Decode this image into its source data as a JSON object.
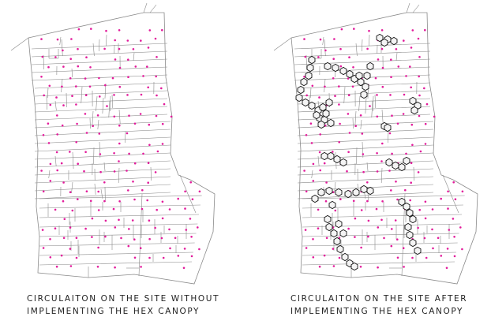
{
  "colors": {
    "outline": "#8a8a8a",
    "dot": "#e21b9b",
    "hex_fill": "#f4f4f4",
    "hex_stroke": "#111111",
    "caption": "#222222"
  },
  "panels": [
    {
      "caption_line1": "CIRCULAITON ON THE SITE WITHOUT",
      "caption_line2": "IMPLEMENTING THE HEX CANOPY",
      "shows_hex_canopy": false
    },
    {
      "caption_line1": "CIRCULAITON ON THE SITE AFTER",
      "caption_line2": "IMPLEMENTING THE HEX CANOPY",
      "shows_hex_canopy": true
    }
  ],
  "icons": {
    "dot": "magenta-circulation-dot",
    "hex": "hexagon-canopy-cell"
  }
}
